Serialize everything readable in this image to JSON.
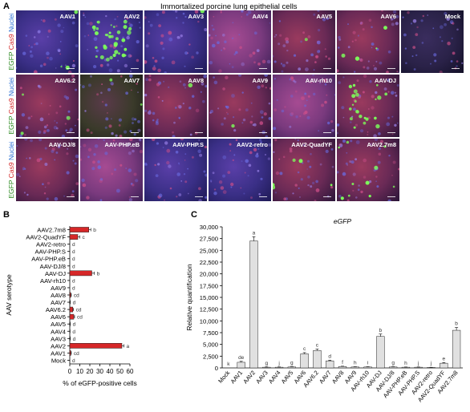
{
  "panel_a": {
    "letter": "A",
    "title": "Immortalized porcine lung epithelial cells",
    "stain": {
      "egfp": "EGFP",
      "cas9": "Cas9",
      "nuclei": "Nuclei"
    },
    "rows": [
      {
        "tiles": [
          {
            "label": "AAV1",
            "tone": "blue",
            "green": 3
          },
          {
            "label": "AAV2",
            "tone": "blue",
            "green": 35
          },
          {
            "label": "AAV3",
            "tone": "blue",
            "green": 1
          },
          {
            "label": "AAV4",
            "tone": "pink",
            "green": 0
          },
          {
            "label": "AAV5",
            "tone": "red",
            "green": 1
          },
          {
            "label": "AAV6",
            "tone": "red",
            "green": 4
          },
          {
            "label": "Mock",
            "tone": "dark",
            "green": 0
          }
        ]
      },
      {
        "tiles": [
          {
            "label": "AAV6.2",
            "tone": "red",
            "green": 3
          },
          {
            "label": "AAV7",
            "tone": "green-dark",
            "green": 2
          },
          {
            "label": "AAV8",
            "tone": "red",
            "green": 1
          },
          {
            "label": "AAV9",
            "tone": "red",
            "green": 1
          },
          {
            "label": "AAV-rh10",
            "tone": "pink",
            "green": 0
          },
          {
            "label": "AAV-DJ",
            "tone": "red",
            "green": 22
          }
        ]
      },
      {
        "tiles": [
          {
            "label": "AAV-DJ/8",
            "tone": "red",
            "green": 0
          },
          {
            "label": "AAV-PHP.eB",
            "tone": "pink",
            "green": 0
          },
          {
            "label": "AAV-PHP.S",
            "tone": "blue",
            "green": 0
          },
          {
            "label": "AAV2-retro",
            "tone": "blue",
            "green": 0
          },
          {
            "label": "AAV2-QuadYF",
            "tone": "red",
            "green": 5
          },
          {
            "label": "AAV2.7m8",
            "tone": "red",
            "green": 10
          }
        ]
      }
    ]
  },
  "chart_data": [
    {
      "panel": "B",
      "type": "bar",
      "orientation": "horizontal",
      "ylabel": "AAV serotype",
      "xlabel": "% of eGFP-positive cells",
      "xlim": [
        0,
        60
      ],
      "xticks": [
        "0",
        "10",
        "20",
        "30",
        "40",
        "50",
        "60"
      ],
      "color": "#d62728",
      "categories": [
        "AAV2.7m8",
        "AAV2-QuadYF",
        "AAV2-retro",
        "AAV-PHP.S",
        "AAV-PHP.eB",
        "AAV-DJ/8",
        "AAV-DJ",
        "AAV-rh10",
        "AAV9",
        "AAV8",
        "AAV7",
        "AAV6.2",
        "AAV6",
        "AAV5",
        "AAV4",
        "AAV3",
        "AAV2",
        "AAV1",
        "Mock"
      ],
      "values": [
        19,
        8,
        0,
        0,
        0,
        0,
        22,
        0,
        0,
        1,
        0.3,
        3,
        4,
        0.3,
        0.2,
        0.3,
        52,
        1,
        0
      ],
      "errors": [
        2,
        2,
        0,
        0,
        0,
        0,
        2.5,
        0,
        0,
        0.5,
        0.2,
        0.7,
        0.8,
        0.2,
        0.1,
        0.2,
        2,
        0.5,
        0
      ],
      "letters": [
        "b",
        "c",
        "d",
        "d",
        "d",
        "d",
        "b",
        "d",
        "d",
        "cd",
        "d",
        "cd",
        "cd",
        "d",
        "d",
        "d",
        "a",
        "cd",
        "d"
      ]
    },
    {
      "panel": "C",
      "type": "bar",
      "orientation": "vertical",
      "title": "eGFP",
      "ylabel": "Relative quantification",
      "ylim": [
        0,
        30000
      ],
      "yticks": [
        "0",
        "2,500",
        "5,000",
        "7,500",
        "10,000",
        "12,500",
        "15,000",
        "17,500",
        "20,000",
        "22,500",
        "25,000",
        "27,500",
        "30,000"
      ],
      "color": "#e0e0e0",
      "categories": [
        "Mock",
        "AAV1",
        "AAV2",
        "AAV3",
        "AAV4",
        "AAV5",
        "AAV6",
        "AAV6.2",
        "AAV7",
        "AAV8",
        "AAV9",
        "AAV-rh10",
        "AAV-DJ",
        "AAV-DJ/8",
        "AAV-PHP.eB",
        "AAV-PHP.S",
        "AAV2-retro",
        "AAV2-QuadYF",
        "AAV2.7m8"
      ],
      "values": [
        0,
        1200,
        27000,
        150,
        150,
        200,
        3000,
        3700,
        1500,
        300,
        200,
        200,
        6700,
        200,
        150,
        150,
        100,
        1000,
        8000
      ],
      "errors": [
        0,
        200,
        900,
        50,
        50,
        60,
        250,
        300,
        150,
        60,
        50,
        50,
        500,
        50,
        40,
        40,
        30,
        150,
        600
      ],
      "letters": [
        "k",
        "de",
        "a",
        "g",
        "j",
        "g",
        "c",
        "c",
        "d",
        "f",
        "h",
        "i",
        "b",
        "g",
        "h",
        "j",
        "j",
        "e",
        "b"
      ]
    }
  ]
}
